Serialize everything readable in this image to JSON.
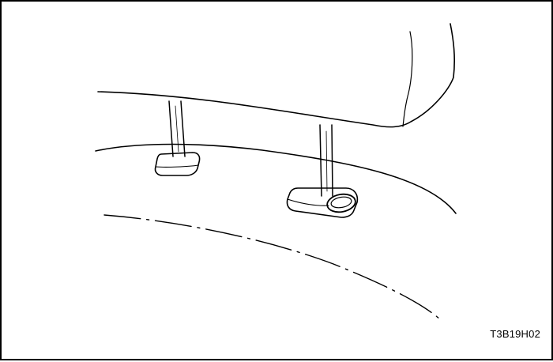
{
  "figure": {
    "code": "T3B19H02"
  },
  "colors": {
    "line": "#000000",
    "background": "#ffffff"
  }
}
